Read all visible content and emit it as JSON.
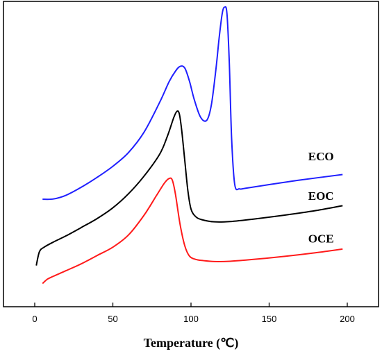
{
  "chart_data": {
    "type": "line",
    "title": "",
    "xlabel": "Temperature (℃)",
    "ylabel": "",
    "xlim": [
      -20,
      220
    ],
    "ylim": [
      0,
      100
    ],
    "xticks": [
      0,
      50,
      100,
      150,
      200
    ],
    "grid": false,
    "legend": "inline labels at right",
    "series": [
      {
        "name": "ECO",
        "color": "#1f1fff",
        "x": [
          5,
          12,
          20,
          30,
          40,
          50,
          60,
          70,
          80,
          86,
          90,
          93,
          96,
          99,
          102,
          106,
          110,
          113,
          116,
          118,
          120,
          121.5,
          123,
          124.5,
          126,
          128,
          131,
          135,
          150,
          170,
          197
        ],
        "y": [
          35.2,
          35.3,
          36.5,
          39.2,
          42.4,
          46.0,
          50.5,
          57.2,
          67.0,
          73.7,
          77.1,
          78.7,
          78.2,
          73.9,
          68.0,
          62.2,
          61.0,
          66.0,
          78.0,
          88.0,
          96.1,
          98.1,
          96.0,
          80.0,
          55.0,
          40.0,
          38.6,
          38.8,
          40.0,
          41.5,
          43.3
        ]
      },
      {
        "name": "EOC",
        "color": "#000000",
        "x": [
          1,
          3,
          6,
          12,
          20,
          30,
          40,
          50,
          60,
          70,
          80,
          85,
          89,
          91,
          92.5,
          94,
          96,
          98,
          100,
          103,
          107,
          115,
          125,
          140,
          160,
          180,
          197
        ],
        "y": [
          13.5,
          18.0,
          19.5,
          21.2,
          23.2,
          26.0,
          28.9,
          32.4,
          37.0,
          42.8,
          50.0,
          56.0,
          62.0,
          64.0,
          63.2,
          58.0,
          48.0,
          38.0,
          32.0,
          29.5,
          28.5,
          27.8,
          27.9,
          28.7,
          30.0,
          31.5,
          33.1
        ]
      },
      {
        "name": "OCE",
        "color": "#ff1a1a",
        "x": [
          5,
          8,
          12,
          20,
          30,
          40,
          50,
          60,
          70,
          78,
          83,
          86,
          88,
          90,
          93,
          96,
          99,
          103,
          108,
          115,
          125,
          140,
          160,
          180,
          197
        ],
        "y": [
          7.6,
          9.0,
          10.0,
          11.8,
          14.1,
          16.8,
          19.5,
          23.5,
          30.0,
          36.5,
          40.5,
          42.0,
          41.5,
          37.0,
          27.0,
          20.0,
          16.6,
          15.5,
          15.1,
          14.8,
          14.9,
          15.5,
          16.5,
          17.7,
          18.9
        ]
      }
    ],
    "labels": [
      {
        "text": "ECO",
        "x": 175,
        "y": 48
      },
      {
        "text": "EOC",
        "x": 175,
        "y": 35
      },
      {
        "text": "OCE",
        "x": 175,
        "y": 21
      }
    ]
  }
}
